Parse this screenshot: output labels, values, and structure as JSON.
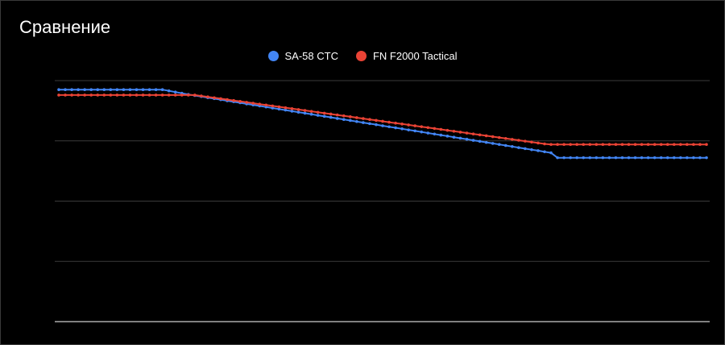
{
  "title": "Сравнение",
  "chart_data": {
    "type": "line",
    "title": "Сравнение",
    "xlabel": "",
    "ylabel": "",
    "ylim": [
      0,
      4
    ],
    "grid": true,
    "legend_position": "top",
    "x": [
      0,
      1,
      2,
      3,
      4,
      5,
      6,
      7,
      8,
      9,
      10,
      11,
      12,
      13,
      14,
      15,
      16,
      17,
      18,
      19,
      20,
      21,
      22,
      23,
      24,
      25,
      26,
      27,
      28,
      29,
      30,
      31,
      32,
      33,
      34,
      35,
      36,
      37,
      38,
      39,
      40,
      41,
      42,
      43,
      44,
      45,
      46,
      47,
      48,
      49,
      50,
      51,
      52,
      53,
      54,
      55,
      56,
      57,
      58,
      59,
      60,
      61,
      62,
      63,
      64,
      65,
      66,
      67,
      68,
      69,
      70,
      71,
      72,
      73,
      74,
      75,
      76,
      77,
      78,
      79,
      80,
      81,
      82,
      83,
      84,
      85,
      86,
      87,
      88,
      89,
      90,
      91,
      92,
      93,
      94,
      95,
      96,
      97,
      98,
      99,
      100
    ],
    "series": [
      {
        "name": "SA-58 CTC",
        "color": "#4285f4",
        "values": [
          3.85,
          3.85,
          3.85,
          3.85,
          3.85,
          3.85,
          3.85,
          3.85,
          3.85,
          3.85,
          3.85,
          3.85,
          3.85,
          3.85,
          3.85,
          3.85,
          3.85,
          3.83,
          3.81,
          3.79,
          3.77,
          3.753,
          3.735,
          3.718,
          3.701,
          3.684,
          3.666,
          3.649,
          3.632,
          3.614,
          3.597,
          3.58,
          3.563,
          3.545,
          3.528,
          3.511,
          3.493,
          3.476,
          3.459,
          3.442,
          3.424,
          3.407,
          3.39,
          3.372,
          3.355,
          3.338,
          3.321,
          3.303,
          3.286,
          3.269,
          3.251,
          3.234,
          3.217,
          3.2,
          3.182,
          3.165,
          3.148,
          3.13,
          3.113,
          3.096,
          3.079,
          3.061,
          3.044,
          3.027,
          3.009,
          2.992,
          2.975,
          2.958,
          2.94,
          2.923,
          2.906,
          2.888,
          2.871,
          2.854,
          2.837,
          2.819,
          2.802,
          2.72,
          2.72,
          2.72,
          2.72,
          2.72,
          2.72,
          2.72,
          2.72,
          2.72,
          2.72,
          2.72,
          2.72,
          2.72,
          2.72,
          2.72,
          2.72,
          2.72,
          2.72,
          2.72,
          2.72,
          2.72,
          2.72,
          2.72,
          2.72
        ]
      },
      {
        "name": "FN F2000 Tactical",
        "color": "#ea4335",
        "values": [
          3.76,
          3.76,
          3.76,
          3.76,
          3.76,
          3.76,
          3.76,
          3.76,
          3.76,
          3.76,
          3.76,
          3.76,
          3.76,
          3.76,
          3.76,
          3.76,
          3.76,
          3.76,
          3.76,
          3.76,
          3.76,
          3.76,
          3.745,
          3.73,
          3.715,
          3.7,
          3.685,
          3.67,
          3.655,
          3.64,
          3.625,
          3.61,
          3.595,
          3.58,
          3.565,
          3.55,
          3.535,
          3.52,
          3.505,
          3.49,
          3.475,
          3.46,
          3.445,
          3.43,
          3.415,
          3.4,
          3.385,
          3.37,
          3.355,
          3.34,
          3.325,
          3.31,
          3.295,
          3.28,
          3.265,
          3.25,
          3.235,
          3.22,
          3.205,
          3.19,
          3.175,
          3.16,
          3.145,
          3.13,
          3.115,
          3.1,
          3.085,
          3.07,
          3.055,
          3.04,
          3.025,
          3.01,
          2.995,
          2.98,
          2.965,
          2.95,
          2.94,
          2.94,
          2.94,
          2.94,
          2.94,
          2.94,
          2.94,
          2.94,
          2.94,
          2.94,
          2.94,
          2.94,
          2.94,
          2.94,
          2.94,
          2.94,
          2.94,
          2.94,
          2.94,
          2.94,
          2.94,
          2.94,
          2.94,
          2.94,
          2.94
        ]
      }
    ]
  },
  "colors": {
    "background": "#000000",
    "grid": "#3a3a3a",
    "baseline": "#cccccc",
    "text": "#ffffff"
  }
}
